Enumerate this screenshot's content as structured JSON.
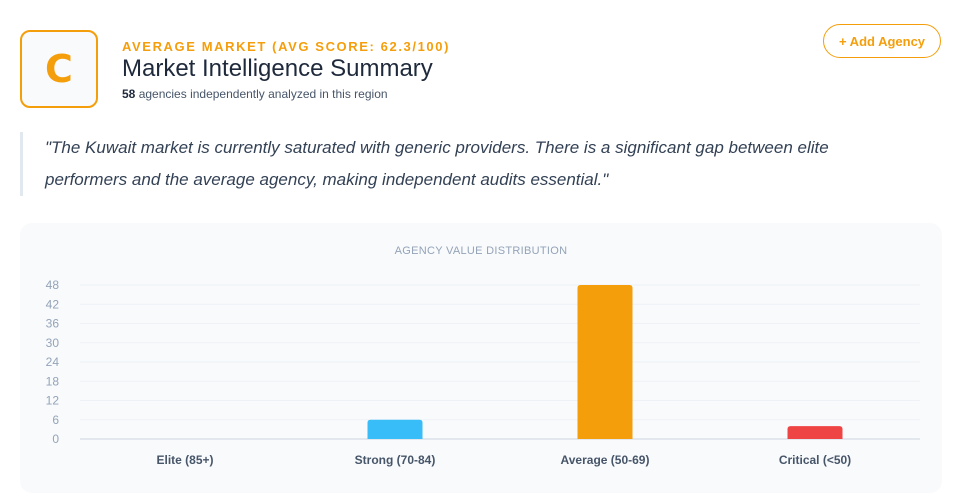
{
  "header": {
    "grade": "C",
    "eyebrow": "AVERAGE MARKET (AVG SCORE: 62.3/100)",
    "title": "Market Intelligence Summary",
    "count": "58",
    "subtitle_rest": " agencies independently analyzed in this region",
    "add_button": "+ Add Agency"
  },
  "quote": "\"The Kuwait market is currently saturated with generic providers. There is a significant gap between elite performers and the average agency, making independent audits essential.\"",
  "colors": {
    "accent": "#f59e0b",
    "strong": "#38bdf8",
    "average": "#f59e0b",
    "critical": "#ef4444"
  },
  "chart_data": {
    "type": "bar",
    "title": "AGENCY VALUE DISTRIBUTION",
    "categories": [
      "Elite (85+)",
      "Strong (70-84)",
      "Average (50-69)",
      "Critical (<50)"
    ],
    "values": [
      0,
      6,
      48,
      4
    ],
    "bar_colors": [
      "#22c55e",
      "#38bdf8",
      "#f59e0b",
      "#ef4444"
    ],
    "y_ticks": [
      "0",
      "6",
      "12",
      "18",
      "24",
      "30",
      "36",
      "42",
      "48"
    ],
    "ylim": [
      0,
      48
    ],
    "grid": true,
    "legend": "none"
  }
}
